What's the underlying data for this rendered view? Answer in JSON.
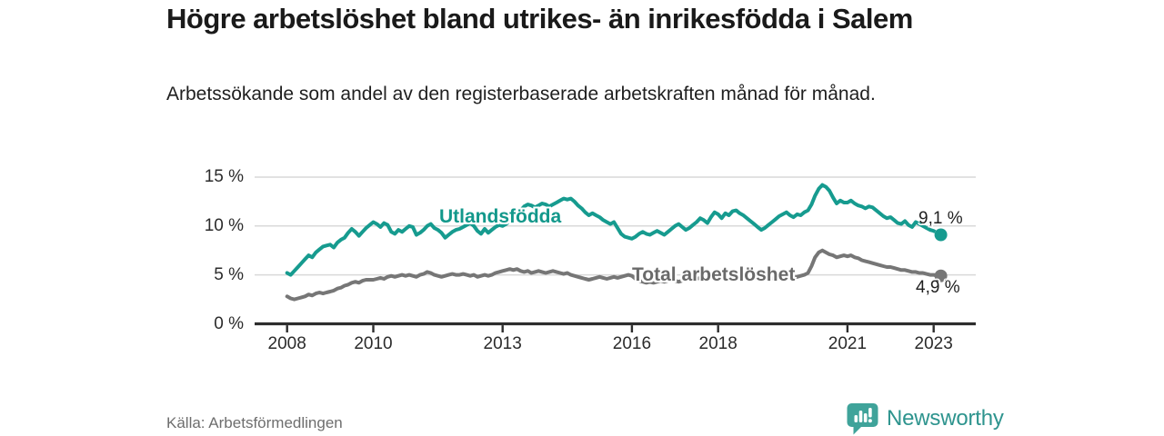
{
  "header": {
    "title": "Högre arbetslöshet bland utrikes- än inrikesfödda i Salem",
    "subtitle": "Arbetssökande som andel av den registerbaserade arbetskraften månad för månad."
  },
  "chart_data": {
    "type": "line",
    "title": "Högre arbetslöshet bland utrikes- än inrikesfödda i Salem",
    "unit": "%",
    "x_start": "2008-01",
    "x_interval": "monthly",
    "ylim": [
      0,
      15
    ],
    "grid": "horizontal",
    "grid_color": "#d9d9d9",
    "axis_color": "#2d2d2d",
    "yticks": [
      {
        "value": 0,
        "label": "0 %"
      },
      {
        "value": 5,
        "label": "5 %"
      },
      {
        "value": 10,
        "label": "10 %"
      },
      {
        "value": 15,
        "label": "15 %"
      }
    ],
    "xticks": [
      {
        "year": 2008,
        "label": "2008"
      },
      {
        "year": 2010,
        "label": "2010"
      },
      {
        "year": 2013,
        "label": "2013"
      },
      {
        "year": 2016,
        "label": "2016"
      },
      {
        "year": 2018,
        "label": "2018"
      },
      {
        "year": 2021,
        "label": "2021"
      },
      {
        "year": 2023,
        "label": "2023"
      }
    ],
    "series": [
      {
        "name": "Utlandsfödda",
        "color": "#169b8f",
        "label_color": "#12988b",
        "end_label": "9,1 %",
        "end_value": 9.1,
        "dashed_tail_from": 179,
        "values": [
          5.2,
          5.0,
          5.4,
          5.8,
          6.2,
          6.6,
          7.0,
          6.8,
          7.3,
          7.6,
          7.9,
          8.0,
          8.1,
          7.8,
          8.3,
          8.6,
          8.8,
          9.3,
          9.7,
          9.4,
          9.0,
          9.4,
          9.8,
          10.1,
          10.4,
          10.2,
          9.9,
          10.3,
          10.1,
          9.4,
          9.2,
          9.6,
          9.4,
          9.7,
          10.0,
          9.9,
          9.1,
          9.3,
          9.6,
          10.0,
          10.2,
          9.8,
          9.6,
          9.3,
          8.8,
          9.1,
          9.4,
          9.6,
          9.7,
          9.9,
          10.1,
          10.3,
          10.0,
          9.5,
          9.2,
          9.7,
          9.3,
          9.6,
          9.9,
          10.1,
          10.0,
          10.2,
          10.5,
          10.8,
          11.2,
          11.6,
          12.0,
          12.2,
          12.1,
          11.9,
          12.1,
          12.3,
          12.2,
          12.0,
          12.2,
          12.4,
          12.6,
          12.8,
          12.7,
          12.8,
          12.5,
          12.1,
          11.8,
          11.4,
          11.1,
          11.3,
          11.1,
          10.9,
          10.6,
          10.4,
          10.2,
          10.4,
          9.8,
          9.2,
          8.9,
          8.8,
          8.7,
          8.9,
          9.2,
          9.4,
          9.2,
          9.1,
          9.3,
          9.5,
          9.3,
          9.1,
          9.4,
          9.7,
          10.0,
          10.2,
          9.9,
          9.6,
          9.8,
          10.1,
          10.4,
          10.8,
          10.6,
          10.3,
          10.9,
          11.4,
          11.2,
          10.8,
          11.3,
          11.1,
          11.5,
          11.6,
          11.3,
          11.1,
          10.8,
          10.5,
          10.2,
          9.9,
          9.6,
          9.8,
          10.1,
          10.4,
          10.7,
          11.0,
          11.2,
          11.4,
          11.1,
          10.9,
          11.2,
          11.1,
          11.4,
          11.6,
          12.2,
          13.1,
          13.8,
          14.2,
          14.0,
          13.6,
          12.9,
          12.3,
          12.6,
          12.4,
          12.4,
          12.6,
          12.3,
          12.1,
          12.0,
          11.8,
          12.0,
          11.9,
          11.6,
          11.3,
          11.0,
          10.8,
          10.9,
          10.6,
          10.3,
          10.2,
          10.5,
          10.1,
          9.9,
          10.4,
          10.2,
          10.0,
          9.8,
          9.6,
          9.5,
          9.3,
          9.1
        ]
      },
      {
        "name": "Total arbetslöshet",
        "color": "#767676",
        "label_color": "#6a6a6a",
        "end_label": "4,9 %",
        "end_value": 4.9,
        "dashed_tail_from": null,
        "values": [
          2.8,
          2.6,
          2.5,
          2.6,
          2.7,
          2.8,
          3.0,
          2.9,
          3.1,
          3.2,
          3.1,
          3.2,
          3.3,
          3.4,
          3.6,
          3.7,
          3.9,
          4.0,
          4.2,
          4.3,
          4.2,
          4.4,
          4.5,
          4.5,
          4.5,
          4.6,
          4.7,
          4.6,
          4.8,
          4.9,
          4.8,
          4.9,
          5.0,
          4.9,
          5.0,
          4.9,
          4.8,
          5.0,
          5.1,
          5.3,
          5.2,
          5.0,
          4.9,
          4.8,
          4.9,
          5.0,
          5.1,
          5.0,
          5.0,
          5.1,
          5.0,
          4.9,
          5.0,
          4.8,
          4.9,
          5.0,
          4.9,
          5.0,
          5.2,
          5.3,
          5.4,
          5.5,
          5.6,
          5.5,
          5.6,
          5.4,
          5.3,
          5.4,
          5.2,
          5.3,
          5.4,
          5.3,
          5.2,
          5.3,
          5.4,
          5.3,
          5.2,
          5.1,
          5.2,
          5.0,
          4.9,
          4.8,
          4.7,
          4.6,
          4.5,
          4.6,
          4.7,
          4.8,
          4.7,
          4.6,
          4.7,
          4.8,
          4.7,
          4.8,
          4.9,
          5.0,
          4.9,
          4.6,
          4.4,
          4.3,
          4.2,
          4.3,
          4.2,
          4.3,
          4.4,
          4.3,
          4.4,
          4.5,
          4.4,
          4.3,
          4.4,
          4.5,
          4.6,
          4.7,
          4.6,
          4.7,
          4.8,
          4.7,
          4.8,
          4.9,
          5.0,
          4.9,
          5.0,
          4.9,
          4.8,
          4.9,
          4.8,
          4.7,
          4.8,
          4.7,
          4.6,
          4.7,
          4.6,
          4.5,
          4.6,
          4.7,
          4.6,
          4.7,
          4.8,
          4.7,
          4.6,
          4.7,
          4.8,
          4.9,
          5.0,
          5.2,
          5.9,
          6.8,
          7.3,
          7.5,
          7.3,
          7.1,
          7.0,
          6.8,
          6.9,
          7.0,
          6.9,
          7.0,
          6.8,
          6.7,
          6.5,
          6.4,
          6.3,
          6.2,
          6.1,
          6.0,
          5.9,
          5.8,
          5.8,
          5.7,
          5.6,
          5.5,
          5.5,
          5.4,
          5.3,
          5.3,
          5.2,
          5.2,
          5.1,
          5.0,
          5.0,
          4.9,
          4.9
        ]
      }
    ]
  },
  "footer": {
    "source": "Källa: Arbetsförmedlingen",
    "logo_text": "Newsworthy",
    "logo_color": "#2e948e",
    "logo_icon_color": "#3fa39a"
  }
}
